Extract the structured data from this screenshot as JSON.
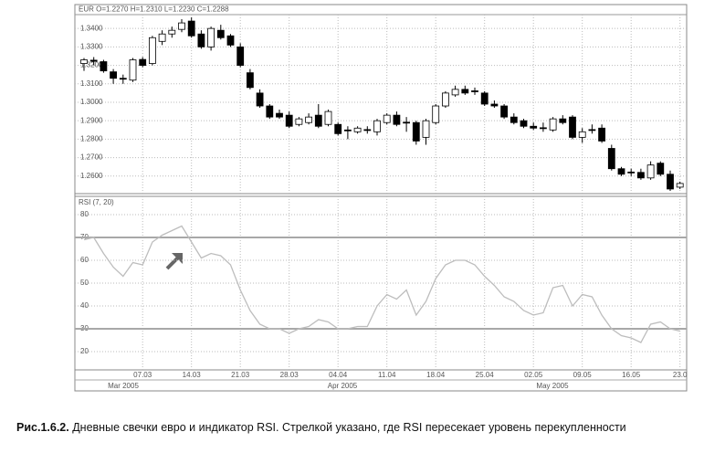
{
  "chart_data": [
    {
      "type": "candlestick",
      "title": "EUR O=1.2270 H=1.2310 L=1.2230 C=1.2288",
      "categories": [
        null,
        null,
        null,
        null,
        null,
        null,
        "07.03",
        null,
        null,
        null,
        null,
        "14.03",
        null,
        null,
        null,
        null,
        "21.03",
        null,
        null,
        null,
        null,
        "28.03",
        null,
        null,
        null,
        null,
        "04.04",
        null,
        null,
        null,
        null,
        "11.04",
        null,
        null,
        null,
        null,
        "18.04",
        null,
        null,
        null,
        null,
        "25.04",
        null,
        null,
        null,
        null,
        "02.05",
        null,
        null,
        null,
        null,
        "09.05",
        null,
        null,
        null,
        null,
        "16.05",
        null,
        null,
        null,
        null,
        "23.0"
      ],
      "open": [
        1.321,
        1.3228,
        1.322,
        1.3165,
        1.313,
        1.312,
        1.3232,
        1.321,
        1.333,
        1.337,
        1.3395,
        1.344,
        1.337,
        1.33,
        1.339,
        1.336,
        1.33,
        1.316,
        1.305,
        1.298,
        1.294,
        1.293,
        1.288,
        1.289,
        1.293,
        1.288,
        1.288,
        1.285,
        1.284,
        1.2852,
        1.284,
        1.289,
        1.293,
        1.2892,
        1.289,
        1.281,
        1.289,
        1.298,
        1.304,
        1.307,
        1.3062,
        1.305,
        1.299,
        1.298,
        1.292,
        1.29,
        1.287,
        1.2862,
        1.285,
        1.291,
        1.292,
        1.281,
        1.2852,
        1.286,
        1.275,
        1.264,
        1.2622,
        1.262,
        1.259,
        1.267,
        1.261,
        1.254
      ],
      "high": [
        1.324,
        1.3245,
        1.323,
        1.318,
        1.315,
        1.324,
        1.3245,
        1.336,
        1.339,
        1.341,
        1.345,
        1.346,
        1.339,
        1.341,
        1.342,
        1.337,
        1.332,
        1.318,
        1.307,
        1.299,
        1.296,
        1.295,
        1.292,
        1.294,
        1.299,
        1.296,
        1.289,
        1.287,
        1.287,
        1.287,
        1.291,
        1.294,
        1.295,
        1.292,
        1.29,
        1.291,
        1.299,
        1.306,
        1.309,
        1.309,
        1.308,
        1.306,
        1.301,
        1.299,
        1.294,
        1.291,
        1.289,
        1.289,
        1.292,
        1.293,
        1.293,
        1.286,
        1.288,
        1.288,
        1.277,
        1.265,
        1.264,
        1.264,
        1.268,
        1.268,
        1.263,
        1.257
      ],
      "low": [
        1.317,
        1.32,
        1.316,
        1.31,
        1.31,
        1.311,
        1.319,
        1.32,
        1.331,
        1.335,
        1.338,
        1.335,
        1.329,
        1.328,
        1.334,
        1.33,
        1.319,
        1.307,
        1.297,
        1.291,
        1.291,
        1.286,
        1.287,
        1.288,
        1.286,
        1.287,
        1.282,
        1.28,
        1.283,
        1.283,
        1.282,
        1.288,
        1.287,
        1.284,
        1.277,
        1.277,
        1.288,
        1.297,
        1.303,
        1.304,
        1.304,
        1.298,
        1.297,
        1.291,
        1.288,
        1.286,
        1.285,
        1.284,
        1.284,
        1.288,
        1.28,
        1.278,
        1.283,
        1.278,
        1.263,
        1.26,
        1.26,
        1.258,
        1.258,
        1.26,
        1.252,
        1.253
      ],
      "close": [
        1.323,
        1.3222,
        1.317,
        1.313,
        1.3125,
        1.323,
        1.32,
        1.335,
        1.337,
        1.339,
        1.343,
        1.336,
        1.33,
        1.34,
        1.335,
        1.331,
        1.32,
        1.308,
        1.298,
        1.292,
        1.292,
        1.287,
        1.291,
        1.292,
        1.287,
        1.295,
        1.283,
        1.2848,
        1.286,
        1.2848,
        1.29,
        1.293,
        1.288,
        1.2888,
        1.279,
        1.29,
        1.298,
        1.305,
        1.307,
        1.305,
        1.3058,
        1.299,
        1.298,
        1.292,
        1.289,
        1.287,
        1.286,
        1.2858,
        1.291,
        1.289,
        1.281,
        1.284,
        1.2848,
        1.279,
        1.264,
        1.261,
        1.2618,
        1.259,
        1.266,
        1.261,
        1.253,
        1.256
      ],
      "up_color": "#ffffff",
      "down_color": "#000000",
      "ylim": [
        1.2505,
        1.3475
      ],
      "yticks": [
        {
          "value": 1.26,
          "label": "1.2600"
        },
        {
          "value": 1.27,
          "label": "1.2700"
        },
        {
          "value": 1.28,
          "label": "1.2800"
        },
        {
          "value": 1.29,
          "label": "1.2900"
        },
        {
          "value": 1.3,
          "label": "1.3000"
        },
        {
          "value": 1.31,
          "label": "1.3100"
        },
        {
          "value": 1.32,
          "label": "1.3200"
        },
        {
          "value": 1.33,
          "label": "1.3300"
        },
        {
          "value": 1.34,
          "label": "1.3400"
        }
      ],
      "grid": true
    },
    {
      "type": "line",
      "title": "RSI (7, 20)",
      "values": [
        69,
        70,
        63,
        57,
        53,
        59,
        58,
        68,
        71,
        73,
        75,
        68,
        61,
        63,
        62,
        58,
        47,
        38,
        32,
        30,
        30,
        28,
        30,
        31,
        34,
        33,
        30,
        30,
        31,
        31,
        40,
        45,
        43,
        47,
        36,
        42,
        52,
        58,
        60,
        60,
        58,
        53,
        49,
        44,
        42,
        38,
        36,
        37,
        48,
        49,
        40,
        45,
        44,
        36,
        30,
        27,
        26,
        24,
        32,
        33,
        30,
        29
      ],
      "color": "#bdbdbd",
      "levels": [
        30,
        70
      ],
      "level_color": "#a8a8a8",
      "ylim": [
        12,
        88
      ],
      "yticks": [
        20,
        30,
        40,
        50,
        60,
        70,
        80
      ],
      "grid": true,
      "month_labels": [
        "Mar 2005",
        "Apr 2005",
        "May 2005"
      ]
    }
  ],
  "caption": {
    "label": "Рис.1.6.2.",
    "text": "Дневные свечки евро и индикатор RSI. Стрелкой указано, где RSI пересекает уровень перекупленности"
  }
}
